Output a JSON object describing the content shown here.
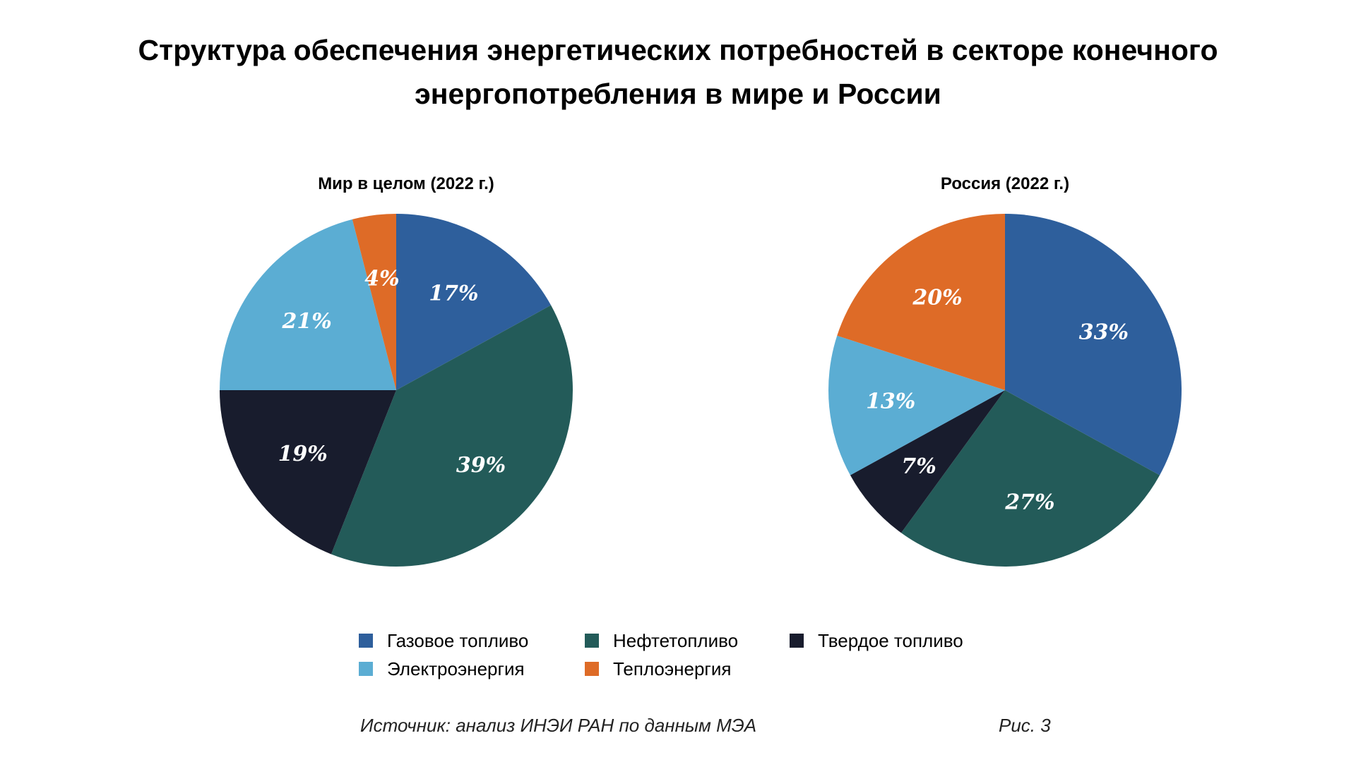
{
  "title_lines": [
    "Структура обеспечения энергетических потребностей в секторе конечного",
    "энергопотребления в мире и России"
  ],
  "colors": {
    "gas": "#2e5f9c",
    "oil": "#235b59",
    "solid": "#181c2d",
    "electricity": "#5badd3",
    "heat": "#de6b27"
  },
  "chart_data": [
    {
      "type": "pie",
      "title": "Мир в целом (2022 г.)",
      "slices": [
        {
          "name": "Газовое топливо",
          "key": "gas",
          "value": 17,
          "label": "17%"
        },
        {
          "name": "Нефтетопливо",
          "key": "oil",
          "value": 39,
          "label": "39%"
        },
        {
          "name": "Твердое топливо",
          "key": "solid",
          "value": 19,
          "label": "19%"
        },
        {
          "name": "Электроэнергия",
          "key": "electricity",
          "value": 21,
          "label": "21%"
        },
        {
          "name": "Теплоэнергия",
          "key": "heat",
          "value": 4,
          "label": "4%"
        }
      ]
    },
    {
      "type": "pie",
      "title": "Россия (2022 г.)",
      "slices": [
        {
          "name": "Газовое топливо",
          "key": "gas",
          "value": 33,
          "label": "33%"
        },
        {
          "name": "Нефтетопливо",
          "key": "oil",
          "value": 27,
          "label": "27%"
        },
        {
          "name": "Твердое топливо",
          "key": "solid",
          "value": 7,
          "label": "7%"
        },
        {
          "name": "Электроэнергия",
          "key": "electricity",
          "value": 13,
          "label": "13%"
        },
        {
          "name": "Теплоэнергия",
          "key": "heat",
          "value": 20,
          "label": "20%"
        }
      ]
    }
  ],
  "legend": [
    {
      "key": "gas",
      "label": "Газовое топливо"
    },
    {
      "key": "oil",
      "label": "Нефтетопливо"
    },
    {
      "key": "solid",
      "label": "Твердое топливо"
    },
    {
      "key": "electricity",
      "label": "Электроэнергия"
    },
    {
      "key": "heat",
      "label": "Теплоэнергия"
    }
  ],
  "source": "Источник: анализ ИНЭИ РАН по данным МЭА",
  "figure_number": "Рис. 3"
}
